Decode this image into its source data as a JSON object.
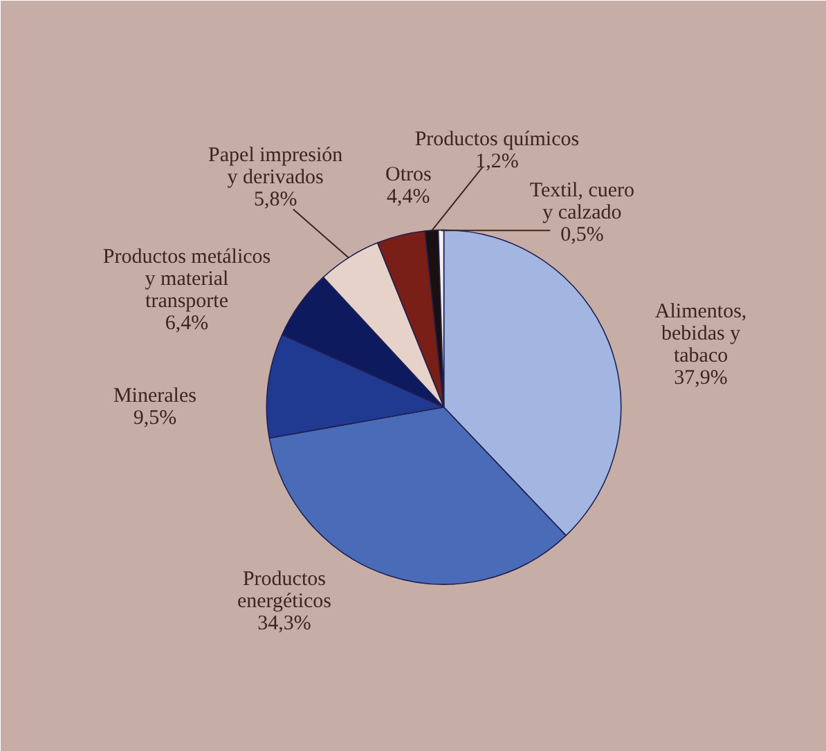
{
  "chart_data": {
    "type": "pie",
    "categories": [
      "Alimentos,\nbebidas y\ntabaco",
      "Productos\nenergéticos",
      "Minerales",
      "Productos metálicos\ny material\ntransporte",
      "Papel impresión\ny derivados",
      "Otros",
      "Productos químicos",
      "Textil, cuero\ny calzado"
    ],
    "values": [
      37.9,
      34.3,
      9.5,
      6.4,
      5.8,
      4.4,
      1.2,
      0.5
    ],
    "value_labels": [
      "37,9%",
      "34,3%",
      "9,5%",
      "6,4%",
      "5,8%",
      "4,4%",
      "1,2%",
      "0,5%"
    ],
    "colors": [
      "#a3b6e2",
      "#4a6cb8",
      "#1f3a90",
      "#0e1a5e",
      "#e6d2c8",
      "#7a1f18",
      "#1a1010",
      "#f5f0f0"
    ]
  }
}
